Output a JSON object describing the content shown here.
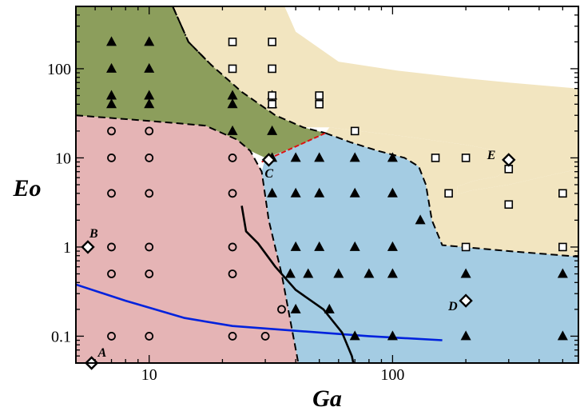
{
  "chart_data": {
    "type": "scatter",
    "title": "",
    "xlabel": "Ga",
    "ylabel": "Eo",
    "xscale": "log",
    "yscale": "log",
    "xlim": [
      5,
      580
    ],
    "ylim": [
      0.05,
      500
    ],
    "x_ticks": [
      {
        "value": 10,
        "label": "10"
      },
      {
        "value": 100,
        "label": "100"
      }
    ],
    "y_ticks": [
      {
        "value": 0.1,
        "label": "0.1"
      },
      {
        "value": 1,
        "label": "1"
      },
      {
        "value": 10,
        "label": "10"
      },
      {
        "value": 100,
        "label": "100"
      }
    ],
    "grid": false,
    "legend": "none",
    "colors": {
      "region_green": "#8c9e5c",
      "region_pink": "#e5b4b5",
      "region_blue": "#a4cce3",
      "region_tan": "#f2e5c0",
      "curve_blue": "#0022dd",
      "boundary_red": "#dd1111",
      "marker": "#000000"
    },
    "regions": [
      {
        "id": "green",
        "polygon": [
          [
            5,
            500
          ],
          [
            12.5,
            500
          ],
          [
            14.5,
            200
          ],
          [
            18,
            110
          ],
          [
            24,
            55
          ],
          [
            33,
            30
          ],
          [
            43,
            22
          ],
          [
            53,
            19
          ],
          [
            42,
            14
          ],
          [
            30,
            10
          ],
          [
            26,
            12
          ],
          [
            23,
            16
          ],
          [
            17,
            23
          ],
          [
            10,
            26
          ],
          [
            5,
            30
          ]
        ]
      },
      {
        "id": "pink",
        "polygon": [
          [
            5,
            30
          ],
          [
            10,
            26
          ],
          [
            17,
            23
          ],
          [
            23,
            16
          ],
          [
            26,
            12
          ],
          [
            29,
            7
          ],
          [
            31,
            2
          ],
          [
            35,
            0.5
          ],
          [
            38,
            0.15
          ],
          [
            41,
            0.05
          ],
          [
            5,
            0.05
          ]
        ]
      },
      {
        "id": "blue",
        "polygon": [
          [
            30,
            10
          ],
          [
            42,
            14
          ],
          [
            53,
            19
          ],
          [
            67,
            15
          ],
          [
            87,
            12
          ],
          [
            112,
            10
          ],
          [
            128,
            8
          ],
          [
            137,
            5
          ],
          [
            145,
            2
          ],
          [
            160,
            1.05
          ],
          [
            300,
            0.9
          ],
          [
            580,
            0.78
          ],
          [
            580,
            0.05
          ],
          [
            41,
            0.05
          ],
          [
            38,
            0.15
          ],
          [
            35,
            0.5
          ],
          [
            31,
            2
          ],
          [
            29,
            7
          ]
        ]
      },
      {
        "id": "tan",
        "polygon": [
          [
            12.5,
            500
          ],
          [
            36,
            500
          ],
          [
            40,
            260
          ],
          [
            60,
            120
          ],
          [
            105,
            95
          ],
          [
            200,
            78
          ],
          [
            300,
            70
          ],
          [
            580,
            60
          ],
          [
            580,
            7.5
          ],
          [
            400,
            6
          ],
          [
            300,
            5
          ],
          [
            210,
            4.3
          ],
          [
            185,
            3.9
          ],
          [
            185,
            4.8
          ],
          [
            220,
            5.6
          ],
          [
            270,
            6.2
          ],
          [
            300,
            7.7
          ],
          [
            305,
            8.8
          ],
          [
            300,
            10.7
          ],
          [
            270,
            12
          ],
          [
            200,
            14
          ],
          [
            120,
            17
          ],
          [
            55,
            22
          ],
          [
            43,
            22
          ],
          [
            33,
            30
          ],
          [
            24,
            55
          ],
          [
            18,
            110
          ],
          [
            14.5,
            200
          ]
        ]
      },
      {
        "id": "tan-lower",
        "polygon": [
          [
            53,
            19
          ],
          [
            67,
            15
          ],
          [
            87,
            12
          ],
          [
            112,
            10
          ],
          [
            128,
            8
          ],
          [
            137,
            5
          ],
          [
            145,
            2
          ],
          [
            160,
            1.05
          ],
          [
            300,
            0.9
          ],
          [
            580,
            0.78
          ],
          [
            580,
            7.5
          ],
          [
            400,
            6
          ],
          [
            300,
            5
          ],
          [
            210,
            4.3
          ],
          [
            185,
            3.9
          ],
          [
            185,
            4.8
          ],
          [
            220,
            5.6
          ],
          [
            270,
            6.2
          ],
          [
            300,
            7.7
          ],
          [
            305,
            8.8
          ],
          [
            300,
            10.7
          ],
          [
            270,
            12
          ],
          [
            200,
            14
          ],
          [
            120,
            17
          ],
          [
            55,
            22
          ]
        ]
      }
    ],
    "boundaries": [
      {
        "style": "dashed",
        "points": [
          [
            12.5,
            500
          ],
          [
            14.5,
            200
          ],
          [
            18,
            110
          ],
          [
            24,
            55
          ],
          [
            33,
            30
          ],
          [
            43,
            22
          ],
          [
            53,
            19
          ]
        ]
      },
      {
        "style": "dashed",
        "points": [
          [
            5,
            30
          ],
          [
            10,
            26
          ],
          [
            17,
            23
          ],
          [
            23,
            16
          ],
          [
            26,
            12
          ],
          [
            29,
            7
          ],
          [
            31,
            2
          ],
          [
            35,
            0.5
          ],
          [
            38,
            0.15
          ],
          [
            41,
            0.05
          ]
        ]
      },
      {
        "style": "dashed",
        "points": [
          [
            53,
            19
          ],
          [
            67,
            15
          ],
          [
            87,
            12
          ],
          [
            112,
            10
          ],
          [
            128,
            8
          ],
          [
            137,
            5
          ],
          [
            145,
            2
          ],
          [
            160,
            1.05
          ],
          [
            300,
            0.9
          ],
          [
            580,
            0.78
          ]
        ]
      },
      {
        "style": "dashdot",
        "points": [
          [
            12.5,
            500
          ],
          [
            14.5,
            200
          ],
          [
            18,
            110
          ]
        ]
      },
      {
        "style": "red-dashed",
        "points": [
          [
            29,
            9
          ],
          [
            53,
            19
          ]
        ]
      }
    ],
    "curves": [
      {
        "id": "blue-curve",
        "color": "#0022dd",
        "width": 2.6,
        "points": [
          [
            5,
            0.38
          ],
          [
            8,
            0.25
          ],
          [
            14,
            0.16
          ],
          [
            22,
            0.13
          ],
          [
            40,
            0.115
          ],
          [
            80,
            0.1
          ],
          [
            160,
            0.09
          ]
        ]
      },
      {
        "id": "black-curve",
        "color": "#000000",
        "width": 2.6,
        "points": [
          [
            24,
            2.9
          ],
          [
            25,
            1.5
          ],
          [
            28,
            1.1
          ],
          [
            33,
            0.6
          ],
          [
            40,
            0.33
          ],
          [
            52,
            0.2
          ],
          [
            62,
            0.11
          ],
          [
            68,
            0.06
          ],
          [
            69,
            0.05
          ]
        ]
      }
    ],
    "series": [
      {
        "marker": "triangle",
        "points": [
          [
            7,
            200
          ],
          [
            10,
            200
          ],
          [
            7,
            100
          ],
          [
            10,
            100
          ],
          [
            7,
            50
          ],
          [
            10,
            50
          ],
          [
            7,
            40
          ],
          [
            10,
            40
          ],
          [
            22,
            50
          ],
          [
            32,
            50
          ],
          [
            22,
            40
          ],
          [
            32,
            40
          ],
          [
            22,
            20
          ],
          [
            32,
            20
          ],
          [
            32,
            10
          ],
          [
            40,
            10
          ],
          [
            50,
            10
          ],
          [
            70,
            10
          ],
          [
            100,
            10
          ],
          [
            32,
            4
          ],
          [
            40,
            4
          ],
          [
            50,
            4
          ],
          [
            70,
            4
          ],
          [
            100,
            4
          ],
          [
            130,
            2
          ],
          [
            40,
            1
          ],
          [
            50,
            1
          ],
          [
            70,
            1
          ],
          [
            100,
            1
          ],
          [
            38,
            0.5
          ],
          [
            45,
            0.5
          ],
          [
            60,
            0.5
          ],
          [
            80,
            0.5
          ],
          [
            100,
            0.5
          ],
          [
            200,
            0.5
          ],
          [
            500,
            0.5
          ],
          [
            40,
            0.2
          ],
          [
            55,
            0.2
          ],
          [
            70,
            0.1
          ],
          [
            100,
            0.1
          ],
          [
            200,
            0.1
          ],
          [
            500,
            0.1
          ]
        ]
      },
      {
        "marker": "circle",
        "points": [
          [
            7,
            20
          ],
          [
            10,
            20
          ],
          [
            7,
            10
          ],
          [
            10,
            10
          ],
          [
            22,
            10
          ],
          [
            7,
            4
          ],
          [
            10,
            4
          ],
          [
            22,
            4
          ],
          [
            7,
            1
          ],
          [
            10,
            1
          ],
          [
            22,
            1
          ],
          [
            7,
            0.5
          ],
          [
            10,
            0.5
          ],
          [
            22,
            0.5
          ],
          [
            35,
            0.2
          ],
          [
            7,
            0.1
          ],
          [
            10,
            0.1
          ],
          [
            22,
            0.1
          ],
          [
            30,
            0.1
          ]
        ]
      },
      {
        "marker": "square",
        "points": [
          [
            22,
            200
          ],
          [
            32,
            200
          ],
          [
            22,
            100
          ],
          [
            32,
            100
          ],
          [
            32,
            50
          ],
          [
            50,
            50
          ],
          [
            32,
            40
          ],
          [
            50,
            40
          ],
          [
            70,
            20
          ],
          [
            150,
            10
          ],
          [
            200,
            10
          ],
          [
            300,
            7.5
          ],
          [
            170,
            4
          ],
          [
            300,
            3
          ],
          [
            500,
            4
          ],
          [
            200,
            1
          ],
          [
            500,
            1
          ]
        ]
      },
      {
        "marker": "diamond",
        "points": [
          [
            5.8,
            0.05
          ],
          [
            5.6,
            1
          ],
          [
            31,
            9.5
          ],
          [
            200,
            0.25
          ],
          [
            300,
            9.5
          ]
        ]
      }
    ],
    "annotations": [
      {
        "text": "A",
        "x": 5.8,
        "y": 0.05
      },
      {
        "text": "B",
        "x": 5.6,
        "y": 1
      },
      {
        "text": "C",
        "x": 31,
        "y": 9.5
      },
      {
        "text": "D",
        "x": 200,
        "y": 0.25
      },
      {
        "text": "E",
        "x": 300,
        "y": 9.5
      }
    ]
  }
}
